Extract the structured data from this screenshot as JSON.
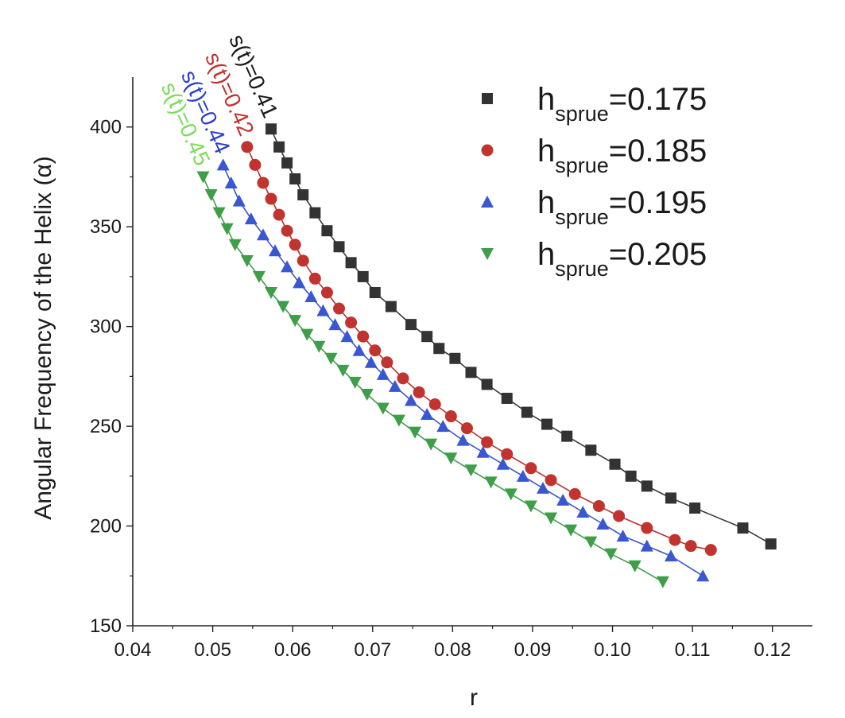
{
  "chart_data": {
    "type": "scatter",
    "title": "",
    "xlabel": "r",
    "ylabel": "Angular Frequency of the Helix (α)",
    "xlim": [
      0.04,
      0.125
    ],
    "ylim": [
      150,
      425
    ],
    "xticks": [
      "0.04",
      "0.05",
      "0.06",
      "0.07",
      "0.08",
      "0.09",
      "0.10",
      "0.11",
      "0.12"
    ],
    "yticks": [
      "150",
      "200",
      "250",
      "300",
      "350",
      "400"
    ],
    "grid": false,
    "legend_position": "top-right",
    "series": [
      {
        "name": "h_sprue=0.175",
        "legend_base": "h",
        "legend_sub": "sprue",
        "legend_value": "=0.175",
        "marker": "square",
        "color": "#333333",
        "line_color": "#3a3a3a",
        "annotation": "s(t)=0.41",
        "x": [
          0.0573,
          0.0583,
          0.0593,
          0.0603,
          0.0613,
          0.0628,
          0.0643,
          0.0658,
          0.0673,
          0.0688,
          0.0703,
          0.0723,
          0.0748,
          0.0768,
          0.0783,
          0.0803,
          0.0823,
          0.0843,
          0.0868,
          0.0893,
          0.0918,
          0.0943,
          0.0973,
          0.1003,
          0.1023,
          0.1043,
          0.1073,
          0.1103,
          0.1163,
          0.1198
        ],
        "y": [
          399,
          390,
          382,
          374,
          366,
          357,
          348,
          340,
          332,
          325,
          317,
          310,
          301,
          295,
          289,
          284,
          277,
          271,
          264,
          257,
          251,
          245,
          238,
          231,
          225,
          220,
          214,
          209,
          199,
          191
        ]
      },
      {
        "name": "h_sprue=0.185",
        "legend_base": "h",
        "legend_sub": "sprue",
        "legend_value": "=0.185",
        "marker": "circle",
        "color": "#c0332e",
        "line_color": "#b8302c",
        "annotation": "s(t)=0.42",
        "x": [
          0.0543,
          0.0553,
          0.0563,
          0.0573,
          0.0583,
          0.0593,
          0.0603,
          0.0613,
          0.0628,
          0.0643,
          0.0658,
          0.0673,
          0.0688,
          0.0703,
          0.0718,
          0.0738,
          0.0758,
          0.0778,
          0.0798,
          0.0818,
          0.0843,
          0.0868,
          0.0898,
          0.0923,
          0.0953,
          0.0983,
          0.1008,
          0.1043,
          0.1078,
          0.1098,
          0.1123
        ],
        "y": [
          390,
          381,
          372,
          364,
          356,
          348,
          341,
          333,
          324,
          317,
          309,
          302,
          295,
          288,
          282,
          274,
          267,
          261,
          255,
          249,
          242,
          236,
          229,
          223,
          216,
          210,
          205,
          199,
          193,
          190,
          188
        ]
      },
      {
        "name": "h_sprue=0.195",
        "legend_base": "h",
        "legend_sub": "sprue",
        "legend_value": "=0.195",
        "marker": "triangle-up",
        "color": "#3a56d0",
        "line_color": "#3a56d0",
        "annotation": "s(t)=0.44",
        "x": [
          0.0513,
          0.0523,
          0.0533,
          0.0548,
          0.0563,
          0.0578,
          0.0593,
          0.0608,
          0.0623,
          0.0638,
          0.0653,
          0.0668,
          0.0683,
          0.0698,
          0.0713,
          0.0728,
          0.0748,
          0.0768,
          0.0788,
          0.0813,
          0.0838,
          0.0863,
          0.0888,
          0.0913,
          0.0938,
          0.0963,
          0.0988,
          0.1013,
          0.1043,
          0.1073,
          0.1113
        ],
        "y": [
          381,
          372,
          363,
          354,
          346,
          338,
          330,
          322,
          315,
          308,
          301,
          295,
          288,
          282,
          276,
          270,
          263,
          256,
          250,
          243,
          237,
          231,
          225,
          219,
          213,
          207,
          201,
          195,
          190,
          185,
          175
        ]
      },
      {
        "name": "h_sprue=0.205",
        "legend_base": "h",
        "legend_sub": "sprue",
        "legend_value": "=0.205",
        "marker": "triangle-down",
        "color": "#3f9e4a",
        "line_color": "#3f9e4a",
        "annotation": "s(t)=0.45",
        "x": [
          0.0488,
          0.0498,
          0.0508,
          0.0518,
          0.0528,
          0.0543,
          0.0558,
          0.0573,
          0.0588,
          0.0603,
          0.0618,
          0.0633,
          0.0648,
          0.0663,
          0.0678,
          0.0693,
          0.0713,
          0.0733,
          0.0753,
          0.0773,
          0.0798,
          0.0823,
          0.0848,
          0.0873,
          0.0898,
          0.0923,
          0.0948,
          0.0973,
          0.0998,
          0.1028,
          0.1063
        ],
        "y": [
          375,
          366,
          357,
          349,
          341,
          333,
          325,
          317,
          310,
          303,
          296,
          290,
          284,
          278,
          272,
          266,
          259,
          253,
          247,
          241,
          234,
          228,
          222,
          216,
          210,
          204,
          198,
          192,
          186,
          180,
          172
        ]
      }
    ]
  }
}
